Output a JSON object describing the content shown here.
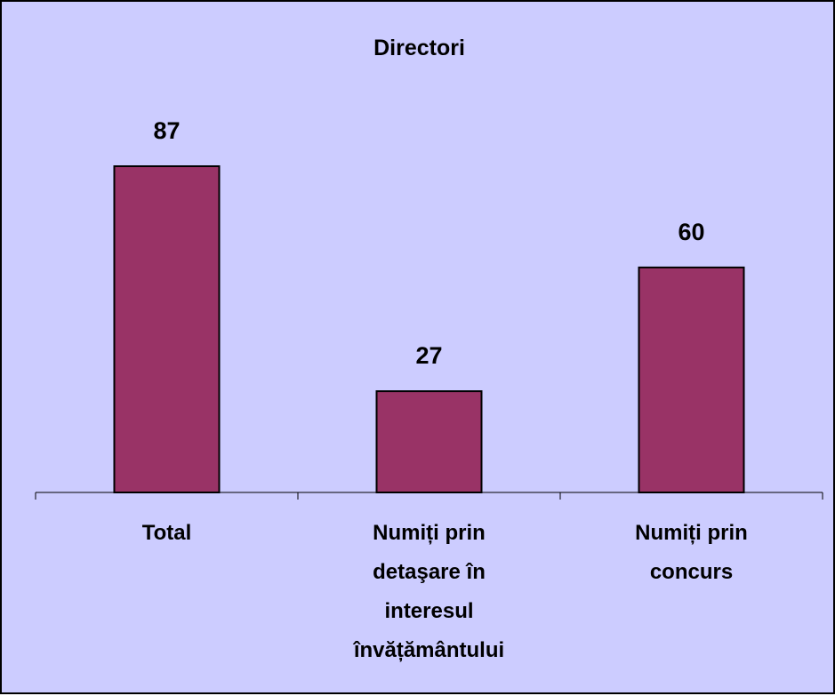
{
  "chart_data": {
    "type": "bar",
    "title": "Directori",
    "categories": [
      "Total",
      "Numiți prin detaşare în interesul învățământului",
      "Numiți prin concurs"
    ],
    "values": [
      87,
      27,
      60
    ],
    "color": "#993366"
  }
}
